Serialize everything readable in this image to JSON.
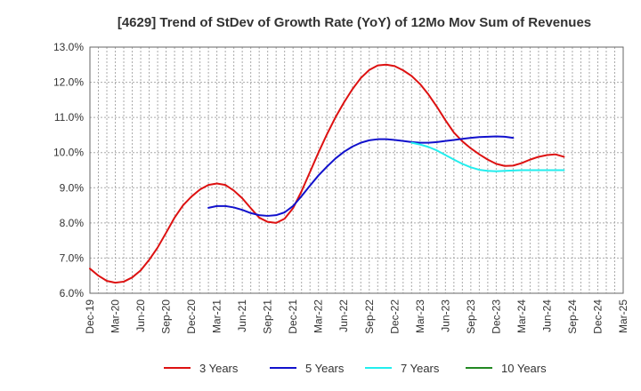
{
  "chart_data": {
    "type": "line",
    "title": "[4629]  Trend of StDev of Growth Rate (YoY) of 12Mo Mov Sum of Revenues",
    "xlabel": "",
    "ylabel": "",
    "ylim": [
      6.0,
      13.0
    ],
    "y_ticks": [
      "6.0%",
      "7.0%",
      "8.0%",
      "9.0%",
      "10.0%",
      "11.0%",
      "12.0%",
      "13.0%"
    ],
    "x_ticks": [
      "Dec-19",
      "Mar-20",
      "Jun-20",
      "Sep-20",
      "Dec-20",
      "Mar-21",
      "Jun-21",
      "Sep-21",
      "Dec-21",
      "Mar-22",
      "Jun-22",
      "Sep-22",
      "Dec-22",
      "Mar-23",
      "Jun-23",
      "Sep-23",
      "Dec-23",
      "Mar-24",
      "Jun-24",
      "Sep-24",
      "Dec-24",
      "Mar-25"
    ],
    "grid": true,
    "legend_position": "bottom",
    "series": [
      {
        "name": "3 Years",
        "color": "#dd1111",
        "start_index": 0,
        "values": [
          6.7,
          6.5,
          6.35,
          6.3,
          6.33,
          6.45,
          6.65,
          6.95,
          7.3,
          7.72,
          8.15,
          8.5,
          8.75,
          8.95,
          9.08,
          9.12,
          9.08,
          8.92,
          8.7,
          8.42,
          8.15,
          8.03,
          8.0,
          8.12,
          8.42,
          8.9,
          9.45,
          10.0,
          10.52,
          11.0,
          11.42,
          11.8,
          12.12,
          12.35,
          12.48,
          12.5,
          12.46,
          12.34,
          12.18,
          11.95,
          11.65,
          11.3,
          10.92,
          10.57,
          10.32,
          10.12,
          9.95,
          9.8,
          9.68,
          9.62,
          9.63,
          9.7,
          9.8,
          9.88,
          9.93,
          9.95,
          9.88
        ]
      },
      {
        "name": "5 Years",
        "color": "#1111cc",
        "start_index": 14,
        "values": [
          8.43,
          8.48,
          8.48,
          8.44,
          8.37,
          8.28,
          8.22,
          8.2,
          8.22,
          8.3,
          8.48,
          8.76,
          9.06,
          9.35,
          9.6,
          9.83,
          10.02,
          10.17,
          10.28,
          10.35,
          10.38,
          10.38,
          10.36,
          10.33,
          10.3,
          10.28,
          10.28,
          10.3,
          10.33,
          10.36,
          10.39,
          10.42,
          10.44,
          10.45,
          10.46,
          10.45,
          10.42
        ]
      },
      {
        "name": "7 Years",
        "color": "#22eeee",
        "start_index": 38,
        "values": [
          10.28,
          10.23,
          10.16,
          10.06,
          9.93,
          9.8,
          9.68,
          9.58,
          9.51,
          9.48,
          9.47,
          9.48,
          9.49,
          9.5,
          9.5,
          9.5,
          9.5,
          9.5,
          9.5
        ]
      },
      {
        "name": "10 Years",
        "color": "#228822",
        "start_index": null,
        "values": []
      }
    ]
  }
}
